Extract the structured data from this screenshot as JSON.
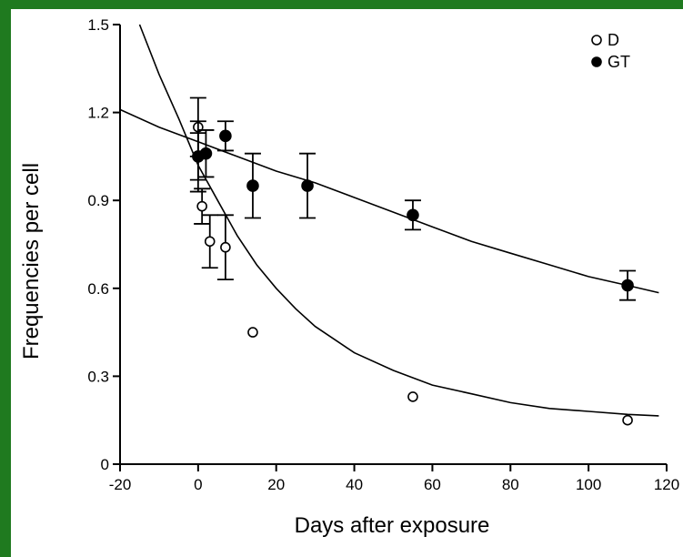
{
  "chart_data": {
    "type": "scatter",
    "title": "",
    "xlabel": "Days after exposure",
    "ylabel": "Frequencies per cell",
    "xlim": [
      -20,
      120
    ],
    "ylim": [
      0,
      1.5
    ],
    "x_ticks": [
      -20,
      0,
      20,
      40,
      60,
      80,
      100,
      120
    ],
    "x_tick_labels": [
      "-20",
      "0",
      "20",
      "40",
      "60",
      "80",
      "100",
      "120"
    ],
    "y_ticks": [
      0,
      0.3,
      0.6,
      0.9,
      1.2,
      1.5
    ],
    "y_tick_labels": [
      "0",
      "0.3",
      "0.6",
      "0.9",
      "1.2",
      "1.5"
    ],
    "grid": false,
    "legend_position": "top-right",
    "series": [
      {
        "name": "D",
        "marker": "open-circle",
        "color": "#000000",
        "points": [
          {
            "x": 0,
            "y": 1.05,
            "err": 0.08
          },
          {
            "x": 0,
            "y": 1.15,
            "err": 0.1
          },
          {
            "x": 1,
            "y": 0.88,
            "err": 0.06
          },
          {
            "x": 3,
            "y": 0.76,
            "err": 0.09
          },
          {
            "x": 7,
            "y": 0.74,
            "err": 0.11
          },
          {
            "x": 14,
            "y": 0.45,
            "err": 0
          },
          {
            "x": 55,
            "y": 0.23,
            "err": 0
          },
          {
            "x": 110,
            "y": 0.15,
            "err": 0
          }
        ],
        "fit_curve": [
          {
            "x": -15,
            "y": 1.5
          },
          {
            "x": -10,
            "y": 1.33
          },
          {
            "x": -5,
            "y": 1.18
          },
          {
            "x": 0,
            "y": 1.02
          },
          {
            "x": 5,
            "y": 0.9
          },
          {
            "x": 10,
            "y": 0.78
          },
          {
            "x": 15,
            "y": 0.68
          },
          {
            "x": 20,
            "y": 0.6
          },
          {
            "x": 25,
            "y": 0.53
          },
          {
            "x": 30,
            "y": 0.47
          },
          {
            "x": 40,
            "y": 0.38
          },
          {
            "x": 50,
            "y": 0.32
          },
          {
            "x": 60,
            "y": 0.27
          },
          {
            "x": 70,
            "y": 0.24
          },
          {
            "x": 80,
            "y": 0.21
          },
          {
            "x": 90,
            "y": 0.19
          },
          {
            "x": 100,
            "y": 0.18
          },
          {
            "x": 110,
            "y": 0.17
          },
          {
            "x": 118,
            "y": 0.165
          }
        ]
      },
      {
        "name": "GT",
        "marker": "filled-circle",
        "color": "#000000",
        "points": [
          {
            "x": 0,
            "y": 1.05,
            "err": 0.12
          },
          {
            "x": 2,
            "y": 1.06,
            "err": 0.08
          },
          {
            "x": 7,
            "y": 1.12,
            "err": 0.05
          },
          {
            "x": 14,
            "y": 0.95,
            "err": 0.11
          },
          {
            "x": 28,
            "y": 0.95,
            "err": 0.11
          },
          {
            "x": 55,
            "y": 0.85,
            "err": 0.05
          },
          {
            "x": 110,
            "y": 0.61,
            "err": 0.05
          }
        ],
        "fit_curve": [
          {
            "x": -20,
            "y": 1.21
          },
          {
            "x": -10,
            "y": 1.15
          },
          {
            "x": 0,
            "y": 1.1
          },
          {
            "x": 10,
            "y": 1.05
          },
          {
            "x": 20,
            "y": 1.0
          },
          {
            "x": 30,
            "y": 0.96
          },
          {
            "x": 40,
            "y": 0.91
          },
          {
            "x": 50,
            "y": 0.86
          },
          {
            "x": 60,
            "y": 0.81
          },
          {
            "x": 70,
            "y": 0.76
          },
          {
            "x": 80,
            "y": 0.72
          },
          {
            "x": 90,
            "y": 0.68
          },
          {
            "x": 100,
            "y": 0.64
          },
          {
            "x": 110,
            "y": 0.61
          },
          {
            "x": 118,
            "y": 0.585
          }
        ]
      }
    ]
  }
}
